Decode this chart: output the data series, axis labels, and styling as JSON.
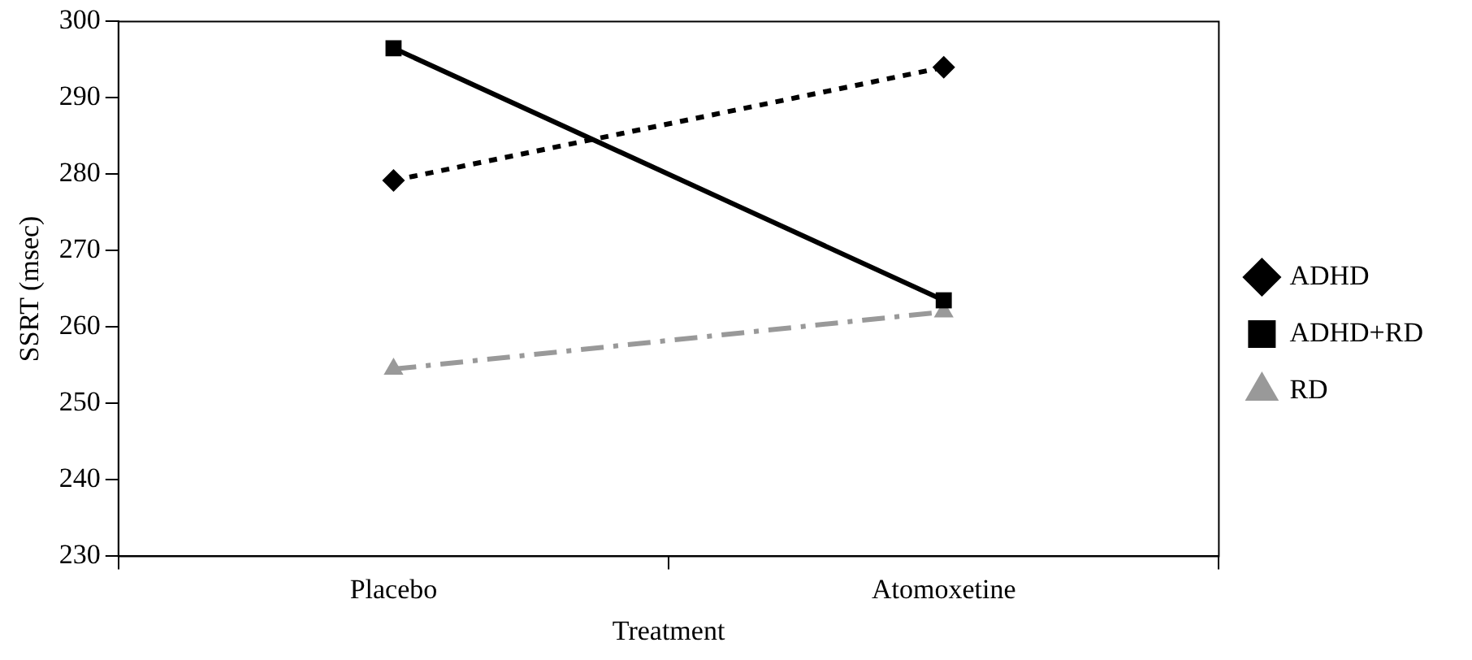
{
  "chart_data": {
    "type": "line",
    "xlabel": "Treatment",
    "ylabel": "SSRT (msec)",
    "categories": [
      "Placebo",
      "Atomoxetine"
    ],
    "series": [
      {
        "name": "ADHD",
        "color": "#000000",
        "values": [
          279.2,
          294
        ],
        "marker": "diamond",
        "line_style": "dotted"
      },
      {
        "name": "ADHD+RD",
        "color": "#000000",
        "values": [
          296.5,
          263.5
        ],
        "marker": "square",
        "line_style": "solid"
      },
      {
        "name": "RD",
        "color": "#999999",
        "values": [
          254.5,
          262
        ],
        "marker": "triangle",
        "line_style": "dashed"
      }
    ],
    "ylim": [
      230,
      300
    ],
    "yticks": [
      230,
      240,
      250,
      260,
      270,
      280,
      290,
      300
    ],
    "grid": false,
    "legend": "right"
  }
}
